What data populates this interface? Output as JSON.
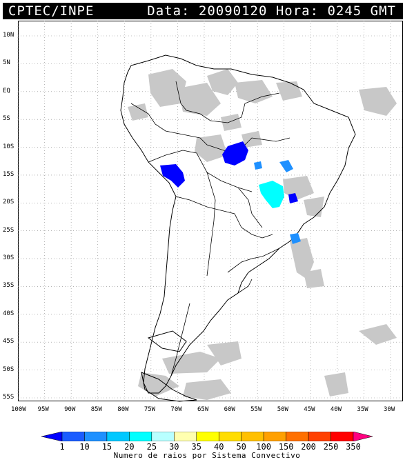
{
  "header": {
    "source": "CPTEC/INPE",
    "timestamp": "Data: 20090120 Hora: 0245 GMT"
  },
  "map": {
    "lat_labels": [
      "10N",
      "5N",
      "EQ",
      "5S",
      "10S",
      "15S",
      "20S",
      "25S",
      "30S",
      "35S",
      "40S",
      "45S",
      "50S",
      "55S"
    ],
    "lon_labels": [
      "100W",
      "95W",
      "90W",
      "85W",
      "80W",
      "75W",
      "70W",
      "65W",
      "60W",
      "55W",
      "50W",
      "45W",
      "40W",
      "35W",
      "30W"
    ],
    "lat_range": [
      10,
      -55
    ],
    "lon_range": [
      -100,
      -30
    ],
    "grid": "dotted"
  },
  "legend": {
    "ticks": [
      "1",
      "10",
      "15",
      "20",
      "25",
      "30",
      "35",
      "40",
      "50",
      "100",
      "150",
      "200",
      "250",
      "350"
    ],
    "colors": [
      "#0000ff",
      "#1a5cff",
      "#1e90ff",
      "#00c8ff",
      "#00ffff",
      "#b8ffff",
      "#ffffb0",
      "#ffff00",
      "#ffdd00",
      "#ffc000",
      "#ffa000",
      "#ff7000",
      "#ff4000",
      "#ff0000",
      "#ff0080"
    ],
    "caption": "Numero de raios por Sistema Convectivo"
  }
}
